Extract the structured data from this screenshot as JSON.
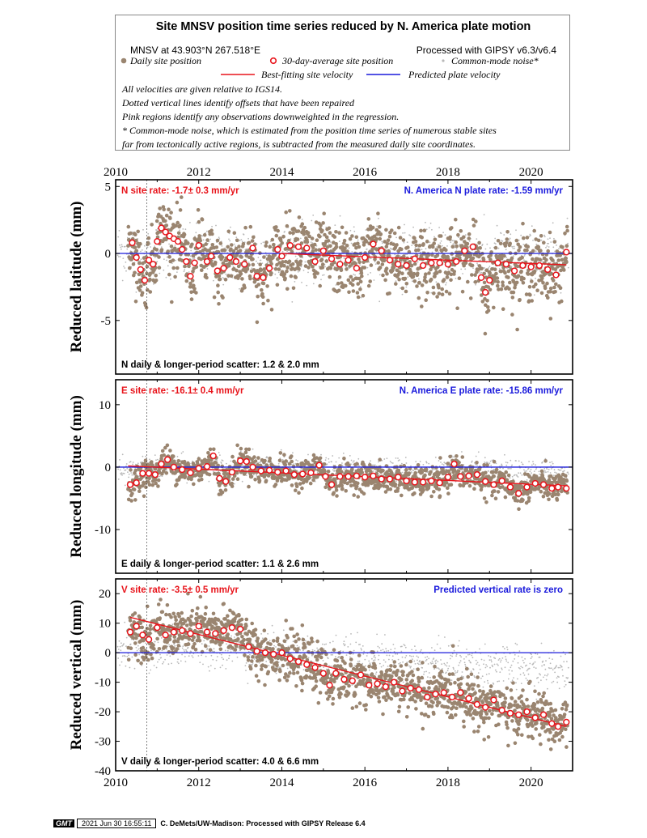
{
  "legend": {
    "title": "Site MNSV position time series reduced by N. America plate motion",
    "site_coords": "MNSV at 43.903°N 267.518°E",
    "processed_with": "Processed with GIPSY v6.3/v6.4",
    "daily_label": "Daily site position",
    "avg_label": "30-day-average site position",
    "cm_label": "Common-mode noise*",
    "bestfit_label": "Best-fitting site velocity",
    "predicted_label": "Predicted plate velocity",
    "notes": [
      "All velocities are given relative to IGS14.",
      "Dotted vertical lines identify offsets that have been repaired",
      "Pink regions identify any observations downweighted in the regression.",
      "* Common-mode noise, which is estimated from the position time series of numerous stable sites",
      "far from tectonically active regions, is subtracted from the measured daily site coordinates."
    ],
    "colors": {
      "daily": "#9a8570",
      "avg_stroke": "#e8141b",
      "cm": "#b8b8b8",
      "bestfit": "#e8141b",
      "predicted": "#1a1adc"
    }
  },
  "footer": {
    "logo": "GMT",
    "timestamp": "2021 Jun 30 16:55:11",
    "credit": "C. DeMets/UW-Madison: Processed with GIPSY Release 6.4"
  },
  "chart_data": [
    {
      "type": "scatter",
      "component": "N",
      "ylabel": "Reduced latitude (mm)",
      "xlim": [
        2010,
        2021
      ],
      "ylim": [
        -9,
        5.5
      ],
      "xticks": [
        2010,
        2012,
        2014,
        2016,
        2018,
        2020
      ],
      "yticks": [
        5,
        0,
        -5
      ],
      "site_rate_label": "N site rate:  -1.7± 0.3 mm/yr",
      "plate_rate_label": "N. America N plate rate: -1.59 mm/yr",
      "scatter_label": "N daily & longer-period scatter:   1.2 &   2.0 mm",
      "offset_years": [
        2010.75
      ],
      "bestfit": {
        "x": [
          2014.0,
          2020.85
        ],
        "y": [
          0.0,
          -0.85
        ]
      },
      "predicted": {
        "y": 0
      },
      "daily_scatter_mm": 1.2,
      "averages": [
        [
          2010.4,
          0.8
        ],
        [
          2010.5,
          -0.3
        ],
        [
          2010.6,
          -1.2
        ],
        [
          2010.7,
          -2.0
        ],
        [
          2010.8,
          -0.5
        ],
        [
          2010.9,
          -0.8
        ],
        [
          2011.0,
          0.9
        ],
        [
          2011.1,
          1.9
        ],
        [
          2011.2,
          1.6
        ],
        [
          2011.3,
          1.3
        ],
        [
          2011.4,
          1.1
        ],
        [
          2011.5,
          0.9
        ],
        [
          2011.6,
          0.3
        ],
        [
          2011.7,
          -0.6
        ],
        [
          2011.8,
          -1.7
        ],
        [
          2011.9,
          -0.7
        ],
        [
          2012.0,
          0.6
        ],
        [
          2012.2,
          -0.6
        ],
        [
          2012.3,
          -0.2
        ],
        [
          2012.45,
          -1.3
        ],
        [
          2012.6,
          -1.1
        ],
        [
          2012.75,
          -0.3
        ],
        [
          2012.9,
          -0.6
        ],
        [
          2013.1,
          -0.8
        ],
        [
          2013.3,
          0.4
        ],
        [
          2013.4,
          -1.7
        ],
        [
          2013.55,
          -1.8
        ],
        [
          2013.7,
          -1.1
        ],
        [
          2013.9,
          0.3
        ],
        [
          2014.0,
          -0.2
        ],
        [
          2014.2,
          0.6
        ],
        [
          2014.4,
          0.5
        ],
        [
          2014.6,
          0.4
        ],
        [
          2014.8,
          -0.6
        ],
        [
          2015.0,
          0.2
        ],
        [
          2015.2,
          -0.4
        ],
        [
          2015.4,
          -0.8
        ],
        [
          2015.6,
          -0.5
        ],
        [
          2015.8,
          -1.1
        ],
        [
          2016.0,
          -0.3
        ],
        [
          2016.2,
          0.7
        ],
        [
          2016.4,
          0.2
        ],
        [
          2016.6,
          -0.5
        ],
        [
          2016.8,
          -0.8
        ],
        [
          2017.0,
          -0.9
        ],
        [
          2017.2,
          -0.4
        ],
        [
          2017.4,
          -0.9
        ],
        [
          2017.6,
          -0.7
        ],
        [
          2017.8,
          -0.7
        ],
        [
          2018.0,
          -0.8
        ],
        [
          2018.2,
          -0.6
        ],
        [
          2018.4,
          0.2
        ],
        [
          2018.6,
          0.5
        ],
        [
          2018.8,
          -1.8
        ],
        [
          2018.9,
          -2.9
        ],
        [
          2019.0,
          -2.0
        ],
        [
          2019.2,
          -0.7
        ],
        [
          2019.4,
          -0.8
        ],
        [
          2019.6,
          -1.3
        ],
        [
          2019.8,
          -0.9
        ],
        [
          2020.0,
          -1.0
        ],
        [
          2020.2,
          -0.9
        ],
        [
          2020.4,
          -1.2
        ],
        [
          2020.6,
          -1.6
        ],
        [
          2020.85,
          0.1
        ]
      ]
    },
    {
      "type": "scatter",
      "component": "E",
      "ylabel": "Reduced longitude (mm)",
      "xlim": [
        2010,
        2021
      ],
      "ylim": [
        -17,
        14
      ],
      "xticks": [
        2010,
        2012,
        2014,
        2016,
        2018,
        2020
      ],
      "yticks": [
        10,
        0,
        -10
      ],
      "site_rate_label": "E site rate:  -16.1± 0.4 mm/yr",
      "plate_rate_label": "N. America E plate rate: -15.86 mm/yr",
      "scatter_label": "E daily & longer-period scatter:   1.1 &   2.6 mm",
      "offset_years": [
        2010.75
      ],
      "bestfit": {
        "x": [
          2010.3,
          2020.85
        ],
        "y": [
          0.2,
          -3.0
        ]
      },
      "predicted": {
        "y": 0
      },
      "daily_scatter_mm": 1.1,
      "averages": [
        [
          2010.35,
          -2.8
        ],
        [
          2010.5,
          -2.5
        ],
        [
          2010.65,
          -1.0
        ],
        [
          2010.8,
          -1.0
        ],
        [
          2010.95,
          -1.2
        ],
        [
          2011.1,
          0.5
        ],
        [
          2011.25,
          1.2
        ],
        [
          2011.4,
          0.0
        ],
        [
          2011.6,
          -0.4
        ],
        [
          2011.8,
          -0.9
        ],
        [
          2012.0,
          -0.2
        ],
        [
          2012.2,
          0.1
        ],
        [
          2012.35,
          1.8
        ],
        [
          2012.5,
          -1.8
        ],
        [
          2012.65,
          -2.3
        ],
        [
          2012.8,
          -0.8
        ],
        [
          2013.0,
          1.0
        ],
        [
          2013.15,
          0.9
        ],
        [
          2013.3,
          0.0
        ],
        [
          2013.5,
          -0.6
        ],
        [
          2013.7,
          -0.5
        ],
        [
          2013.9,
          -0.8
        ],
        [
          2014.1,
          -0.6
        ],
        [
          2014.3,
          -1.2
        ],
        [
          2014.5,
          -1.1
        ],
        [
          2014.7,
          -0.9
        ],
        [
          2014.9,
          0.3
        ],
        [
          2015.05,
          -1.5
        ],
        [
          2015.2,
          -2.8
        ],
        [
          2015.4,
          -1.5
        ],
        [
          2015.6,
          -1.5
        ],
        [
          2015.8,
          -1.4
        ],
        [
          2016.0,
          -1.6
        ],
        [
          2016.2,
          -1.4
        ],
        [
          2016.4,
          -1.9
        ],
        [
          2016.6,
          -1.9
        ],
        [
          2016.8,
          -1.6
        ],
        [
          2017.0,
          -2.2
        ],
        [
          2017.2,
          -2.4
        ],
        [
          2017.4,
          -2.4
        ],
        [
          2017.6,
          -2.2
        ],
        [
          2017.8,
          -2.5
        ],
        [
          2018.0,
          -1.6
        ],
        [
          2018.15,
          0.5
        ],
        [
          2018.3,
          -1.5
        ],
        [
          2018.5,
          -1.4
        ],
        [
          2018.7,
          -1.2
        ],
        [
          2018.9,
          -2.3
        ],
        [
          2019.1,
          -2.8
        ],
        [
          2019.3,
          -2.2
        ],
        [
          2019.5,
          -3.2
        ],
        [
          2019.7,
          -4.2
        ],
        [
          2019.9,
          -3.2
        ],
        [
          2020.1,
          -2.6
        ],
        [
          2020.3,
          -2.8
        ],
        [
          2020.5,
          -3.4
        ],
        [
          2020.65,
          -3.2
        ],
        [
          2020.85,
          -3.4
        ]
      ]
    },
    {
      "type": "scatter",
      "component": "V",
      "ylabel": "Reduced vertical (mm)",
      "xlim": [
        2010,
        2021
      ],
      "ylim": [
        -40,
        25
      ],
      "xticks": [
        2010,
        2012,
        2014,
        2016,
        2018,
        2020
      ],
      "xtick_labels": [
        "2010",
        "2012",
        "2014",
        "2016",
        "2018",
        "2020"
      ],
      "yticks": [
        20,
        10,
        0,
        -10,
        -20,
        -30,
        -40
      ],
      "site_rate_label": "V site rate:  -3.5± 0.5 mm/yr",
      "plate_rate_label": "Predicted vertical rate is zero",
      "scatter_label": "V daily & longer-period scatter:   4.0 &   6.6 mm",
      "offset_years": [
        2010.75
      ],
      "bestfit": {
        "x": [
          2010.35,
          2020.85
        ],
        "y": [
          12.0,
          -25.0
        ]
      },
      "predicted": {
        "y": 0
      },
      "daily_scatter_mm": 4.0,
      "averages": [
        [
          2010.35,
          7.0
        ],
        [
          2010.5,
          9.0
        ],
        [
          2010.65,
          6.0
        ],
        [
          2010.8,
          4.5
        ],
        [
          2011.0,
          8.5
        ],
        [
          2011.2,
          6.0
        ],
        [
          2011.4,
          7.0
        ],
        [
          2011.6,
          7.5
        ],
        [
          2011.8,
          6.5
        ],
        [
          2012.0,
          9.0
        ],
        [
          2012.2,
          7.0
        ],
        [
          2012.4,
          6.5
        ],
        [
          2012.6,
          7.5
        ],
        [
          2012.8,
          8.5
        ],
        [
          2013.0,
          8.0
        ],
        [
          2013.2,
          2.0
        ],
        [
          2013.4,
          0.5
        ],
        [
          2013.6,
          0.0
        ],
        [
          2013.8,
          -0.5
        ],
        [
          2014.0,
          0.0
        ],
        [
          2014.2,
          -2.0
        ],
        [
          2014.4,
          -3.0
        ],
        [
          2014.6,
          -4.0
        ],
        [
          2014.8,
          -5.0
        ],
        [
          2015.0,
          -7.0
        ],
        [
          2015.15,
          -11.0
        ],
        [
          2015.3,
          -7.0
        ],
        [
          2015.5,
          -9.0
        ],
        [
          2015.7,
          -9.5
        ],
        [
          2015.9,
          -7.5
        ],
        [
          2016.1,
          -11.0
        ],
        [
          2016.3,
          -10.5
        ],
        [
          2016.5,
          -11.5
        ],
        [
          2016.7,
          -10.0
        ],
        [
          2016.9,
          -13.0
        ],
        [
          2017.1,
          -12.0
        ],
        [
          2017.3,
          -12.5
        ],
        [
          2017.5,
          -15.0
        ],
        [
          2017.7,
          -14.0
        ],
        [
          2017.9,
          -13.5
        ],
        [
          2018.1,
          -15.0
        ],
        [
          2018.3,
          -13.5
        ],
        [
          2018.5,
          -15.5
        ],
        [
          2018.7,
          -17.5
        ],
        [
          2018.9,
          -18.5
        ],
        [
          2019.1,
          -16.0
        ],
        [
          2019.3,
          -19.5
        ],
        [
          2019.5,
          -20.5
        ],
        [
          2019.7,
          -21.0
        ],
        [
          2019.9,
          -20.0
        ],
        [
          2020.1,
          -22.0
        ],
        [
          2020.3,
          -21.0
        ],
        [
          2020.5,
          -24.0
        ],
        [
          2020.65,
          -25.0
        ],
        [
          2020.85,
          -23.5
        ]
      ]
    }
  ]
}
